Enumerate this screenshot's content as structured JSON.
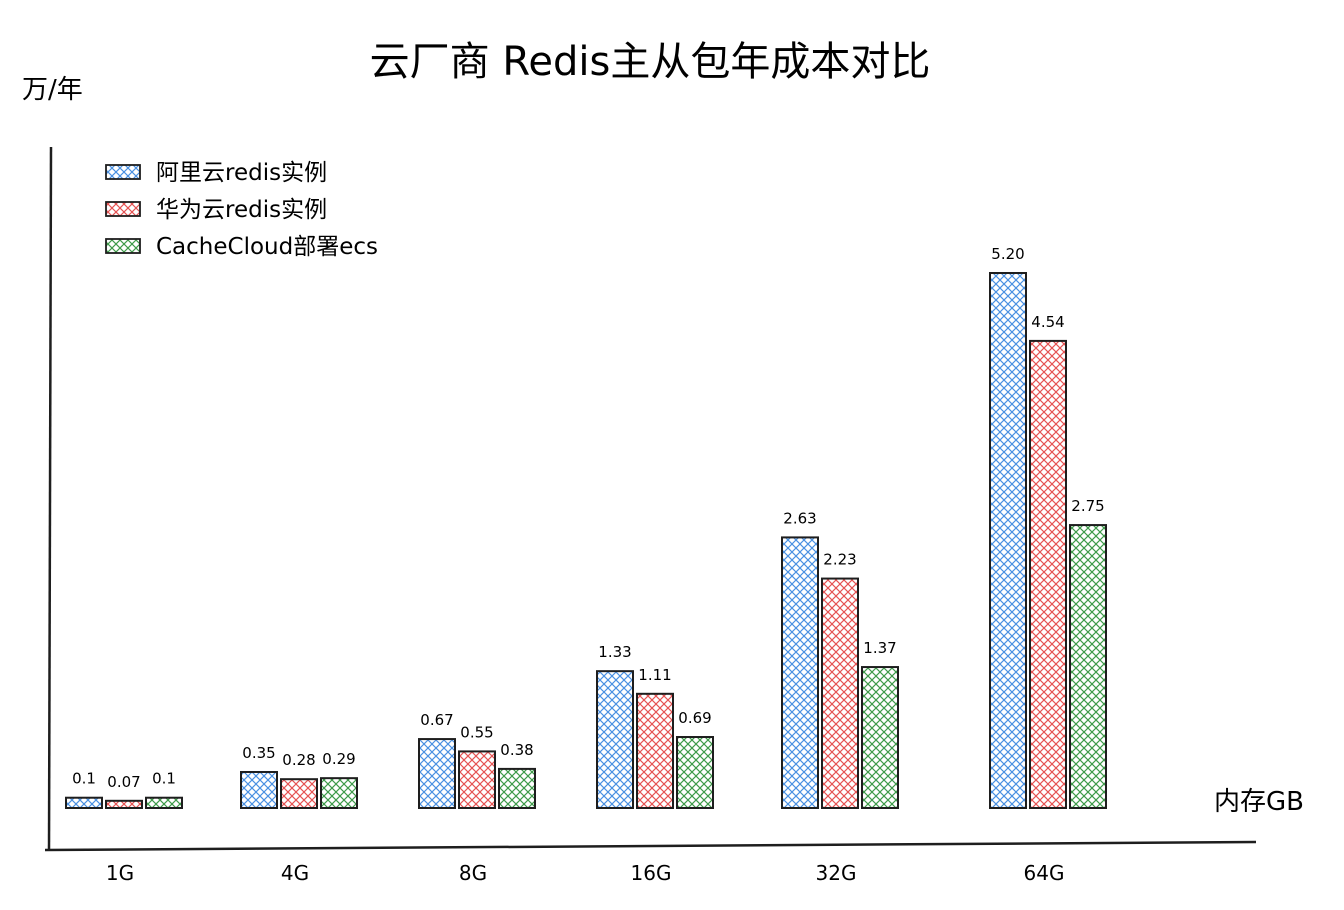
{
  "chart_data": {
    "type": "bar",
    "title": "云厂商 Redis主从包年成本对比",
    "ylabel": "万/年",
    "xlabel": "内存GB",
    "categories": [
      "1G",
      "4G",
      "8G",
      "16G",
      "32G",
      "64G"
    ],
    "series": [
      {
        "name": "阿里云redis实例",
        "color": "#4a90e2",
        "values": [
          0.1,
          0.35,
          0.67,
          1.33,
          2.63,
          5.2
        ],
        "labels": [
          "0.1",
          "0.35",
          "0.67",
          "1.33",
          "2.63",
          "5.20"
        ]
      },
      {
        "name": "华为云redis实例",
        "color": "#e55353",
        "values": [
          0.07,
          0.28,
          0.55,
          1.11,
          2.23,
          4.54
        ],
        "labels": [
          "0.07",
          "0.28",
          "0.55",
          "1.11",
          "2.23",
          "4.54"
        ]
      },
      {
        "name": "CacheCloud部署ecs",
        "color": "#3e9b4a",
        "values": [
          0.1,
          0.29,
          0.38,
          0.69,
          1.37,
          2.75
        ],
        "labels": [
          "0.1",
          "0.29",
          "0.38",
          "0.69",
          "1.37",
          "2.75"
        ]
      }
    ],
    "ylim": [
      0,
      5.5
    ],
    "grid": false,
    "legend_position": "top-left"
  }
}
